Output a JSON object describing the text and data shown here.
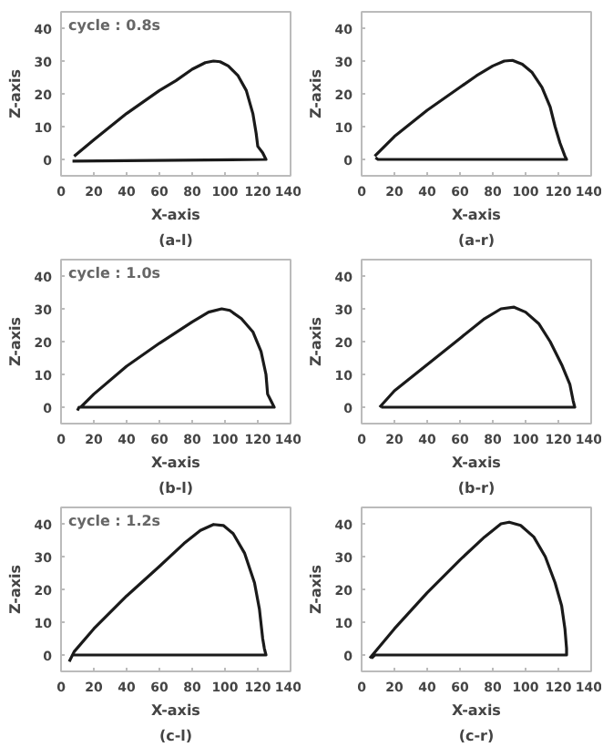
{
  "chart_data": [
    {
      "type": "line",
      "title": "(a-l)",
      "xlabel": "X-axis",
      "ylabel": "Z-axis",
      "annotations": [
        "cycle : 0.8s"
      ],
      "xlim": [
        0,
        140
      ],
      "ylim": [
        -5,
        45
      ],
      "xticks": [
        0,
        20,
        40,
        60,
        80,
        100,
        120,
        140
      ],
      "yticks": [
        0,
        10,
        20,
        30,
        40
      ],
      "grid": false,
      "series": [
        {
          "color": "#1a1a1a",
          "x": [
            8,
            20,
            40,
            60,
            70,
            80,
            88,
            93,
            97,
            102,
            108,
            113,
            117,
            119,
            120,
            123,
            125,
            7
          ],
          "values": [
            1,
            6,
            14,
            21,
            24,
            27.5,
            29.5,
            30,
            29.8,
            28.5,
            25.5,
            21,
            14,
            8,
            4,
            2,
            0,
            -0.5
          ]
        }
      ]
    },
    {
      "type": "line",
      "title": "(a-r)",
      "xlabel": "X-axis",
      "ylabel": "Z-axis",
      "xlim": [
        0,
        140
      ],
      "ylim": [
        -5,
        45
      ],
      "xticks": [
        0,
        20,
        40,
        60,
        80,
        100,
        120,
        140
      ],
      "yticks": [
        0,
        10,
        20,
        30,
        40
      ],
      "grid": false,
      "series": [
        {
          "color": "#1a1a1a",
          "x": [
            8,
            20,
            40,
            60,
            70,
            80,
            87,
            92,
            98,
            104,
            110,
            115,
            118,
            121,
            124,
            125,
            10,
            8.5
          ],
          "values": [
            1,
            7,
            15,
            22,
            25.5,
            28.5,
            30,
            30.2,
            29,
            26.5,
            22,
            16,
            10,
            5,
            1,
            0,
            0,
            0.5
          ]
        }
      ]
    },
    {
      "type": "line",
      "title": "(b-l)",
      "xlabel": "X-axis",
      "ylabel": "Z-axis",
      "annotations": [
        "cycle : 1.0s"
      ],
      "xlim": [
        0,
        140
      ],
      "ylim": [
        -5,
        45
      ],
      "xticks": [
        0,
        20,
        40,
        60,
        80,
        100,
        120,
        140
      ],
      "yticks": [
        0,
        10,
        20,
        30,
        40
      ],
      "grid": false,
      "series": [
        {
          "color": "#1a1a1a",
          "x": [
            12,
            20,
            40,
            60,
            80,
            90,
            98,
            103,
            110,
            117,
            122,
            125,
            126,
            128,
            130,
            11,
            10
          ],
          "values": [
            0,
            4,
            12.5,
            19.5,
            26,
            29,
            30,
            29.5,
            27,
            23,
            17,
            10,
            4,
            2,
            0,
            0,
            -1
          ]
        }
      ]
    },
    {
      "type": "line",
      "title": "(b-r)",
      "xlabel": "X-axis",
      "ylabel": "Z-axis",
      "xlim": [
        0,
        140
      ],
      "ylim": [
        -5,
        45
      ],
      "xticks": [
        0,
        20,
        40,
        60,
        80,
        100,
        120,
        140
      ],
      "yticks": [
        0,
        10,
        20,
        30,
        40
      ],
      "grid": false,
      "series": [
        {
          "color": "#1a1a1a",
          "x": [
            11,
            20,
            40,
            60,
            75,
            85,
            93,
            100,
            108,
            115,
            122,
            127,
            129,
            130,
            12
          ],
          "values": [
            0,
            5,
            13,
            21,
            27,
            30,
            30.5,
            29,
            25.5,
            20,
            13,
            7,
            2,
            0,
            0
          ]
        }
      ]
    },
    {
      "type": "line",
      "title": "(c-l)",
      "xlabel": "X-axis",
      "ylabel": "Z-axis",
      "annotations": [
        "cycle : 1.2s"
      ],
      "xlim": [
        0,
        140
      ],
      "ylim": [
        -5,
        45
      ],
      "xticks": [
        0,
        20,
        40,
        60,
        80,
        100,
        120,
        140
      ],
      "yticks": [
        0,
        10,
        20,
        30,
        40
      ],
      "grid": false,
      "series": [
        {
          "color": "#1a1a1a",
          "x": [
            5,
            8,
            20,
            40,
            60,
            75,
            85,
            93,
            99,
            105,
            112,
            118,
            121,
            123,
            124,
            125,
            7,
            6
          ],
          "values": [
            -2,
            1,
            8,
            18,
            27,
            34,
            38,
            39.8,
            39.5,
            37,
            31,
            22,
            14,
            5,
            2,
            0,
            0,
            -1
          ]
        }
      ]
    },
    {
      "type": "line",
      "title": "(c-r)",
      "xlabel": "X-axis",
      "ylabel": "Z-axis",
      "xlim": [
        0,
        140
      ],
      "ylim": [
        -5,
        45
      ],
      "xticks": [
        0,
        20,
        40,
        60,
        80,
        100,
        120,
        140
      ],
      "yticks": [
        0,
        10,
        20,
        30,
        40
      ],
      "grid": false,
      "series": [
        {
          "color": "#1a1a1a",
          "x": [
            5,
            10,
            20,
            40,
            60,
            75,
            85,
            90,
            97,
            105,
            112,
            118,
            122,
            124,
            125,
            125,
            8,
            6
          ],
          "values": [
            -1,
            2,
            8,
            19,
            29,
            36,
            40,
            40.5,
            39.5,
            36,
            30,
            22,
            15,
            8,
            2,
            0,
            0,
            -1
          ]
        }
      ]
    }
  ]
}
